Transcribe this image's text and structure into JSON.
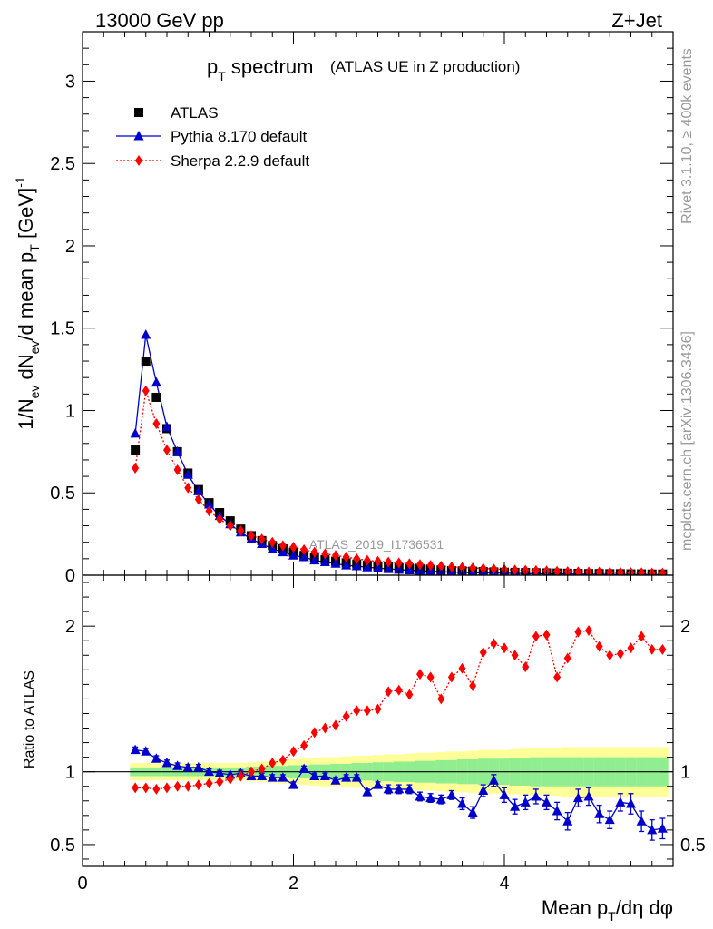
{
  "header": {
    "energy_label": "13000 GeV pp",
    "process_label": "Z+Jet",
    "title_main": "p",
    "title_sub": "T",
    "title_rest": " spectrum",
    "title_paren": "(ATLAS UE in Z production)",
    "watermark": "ATLAS_2019_I1736531",
    "rivet_label": "Rivet 3.1.10, ≥ 400k events",
    "mcplots_label": "mcplots.cern.ch [arXiv:1306.3436]"
  },
  "axes": {
    "ylabel_main": "1/N",
    "ylabel_sub1": "ev",
    "ylabel_mid": " dN",
    "ylabel_sub2": "ev",
    "ylabel_mid2": "/d mean p",
    "ylabel_sub3": "T",
    "ylabel_unit": " [GeV]",
    "ylabel_sup": "-1",
    "ratio_ylabel": "Ratio to ATLAS",
    "xlabel_main": "Mean p",
    "xlabel_sub": "T",
    "xlabel_rest": "/dη dφ"
  },
  "legend": [
    {
      "label": "ATLAS",
      "color": "#000000",
      "marker": "square"
    },
    {
      "label": "Pythia 8.170 default",
      "color": "#0000cc",
      "marker": "triangle"
    },
    {
      "label": "Sherpa 2.2.9 default",
      "color": "#ff0000",
      "marker": "diamond"
    }
  ],
  "chart_data": [
    {
      "type": "scatter",
      "panel": "main",
      "xlim": [
        0,
        5.6
      ],
      "ylim": [
        0,
        3.3
      ],
      "yticks": [
        0,
        0.5,
        1,
        1.5,
        2,
        2.5,
        3
      ],
      "ytick_labels": [
        "0",
        "0.5",
        "1",
        "1.5",
        "2",
        "2.5",
        "3"
      ],
      "x": [
        0.5,
        0.6,
        0.7,
        0.8,
        0.9,
        1.0,
        1.1,
        1.2,
        1.3,
        1.4,
        1.5,
        1.6,
        1.7,
        1.8,
        1.9,
        2.0,
        2.1,
        2.2,
        2.3,
        2.4,
        2.5,
        2.6,
        2.7,
        2.8,
        2.9,
        3.0,
        3.1,
        3.2,
        3.3,
        3.4,
        3.5,
        3.6,
        3.7,
        3.8,
        3.9,
        4.0,
        4.1,
        4.2,
        4.3,
        4.4,
        4.5,
        4.6,
        4.7,
        4.8,
        4.9,
        5.0,
        5.1,
        5.2,
        5.3,
        5.4,
        5.5
      ],
      "series": [
        {
          "name": "ATLAS",
          "color": "#000000",
          "values": [
            0.76,
            1.3,
            1.08,
            0.89,
            0.75,
            0.62,
            0.52,
            0.44,
            0.38,
            0.33,
            0.28,
            0.24,
            0.21,
            0.18,
            0.16,
            0.14,
            0.12,
            0.105,
            0.095,
            0.085,
            0.075,
            0.068,
            0.06,
            0.055,
            0.05,
            0.045,
            0.04,
            0.037,
            0.034,
            0.031,
            0.028,
            0.026,
            0.024,
            0.022,
            0.02,
            0.018,
            0.017,
            0.016,
            0.015,
            0.014,
            0.013,
            0.012,
            0.011,
            0.01,
            0.01,
            0.009,
            0.009,
            0.008,
            0.008,
            0.007,
            0.007
          ]
        },
        {
          "name": "Pythia 8.170 default",
          "color": "#0000cc",
          "values": [
            0.86,
            1.46,
            1.17,
            0.9,
            0.75,
            0.61,
            0.51,
            0.43,
            0.36,
            0.31,
            0.26,
            0.22,
            0.19,
            0.16,
            0.14,
            0.12,
            0.11,
            0.09,
            0.08,
            0.07,
            0.06,
            0.055,
            0.048,
            0.043,
            0.038,
            0.034,
            0.03,
            0.027,
            0.024,
            0.021,
            0.019,
            0.017,
            0.015,
            0.014,
            0.013,
            0.012,
            0.011,
            0.01,
            0.009,
            0.008,
            0.008,
            0.007,
            0.007,
            0.006,
            0.006,
            0.005,
            0.005,
            0.005,
            0.004,
            0.004,
            0.004
          ]
        },
        {
          "name": "Sherpa 2.2.9 default",
          "color": "#ff0000",
          "values": [
            0.65,
            1.12,
            0.92,
            0.76,
            0.64,
            0.53,
            0.46,
            0.39,
            0.34,
            0.3,
            0.27,
            0.24,
            0.22,
            0.2,
            0.18,
            0.17,
            0.155,
            0.14,
            0.13,
            0.12,
            0.11,
            0.1,
            0.09,
            0.085,
            0.08,
            0.075,
            0.07,
            0.065,
            0.06,
            0.055,
            0.05,
            0.047,
            0.044,
            0.041,
            0.038,
            0.035,
            0.032,
            0.03,
            0.028,
            0.026,
            0.024,
            0.022,
            0.021,
            0.02,
            0.019,
            0.018,
            0.017,
            0.016,
            0.015,
            0.014,
            0.013
          ]
        }
      ]
    },
    {
      "type": "scatter",
      "panel": "ratio",
      "xlim": [
        0,
        5.6
      ],
      "ylim": [
        0.35,
        2.35
      ],
      "yticks": [
        0.5,
        1,
        2
      ],
      "ytick_labels": [
        "0.5",
        "1",
        "2"
      ],
      "xticks": [
        0,
        2,
        4
      ],
      "xtick_labels": [
        "0",
        "2",
        "4"
      ],
      "x": [
        0.5,
        0.6,
        0.7,
        0.8,
        0.9,
        1.0,
        1.1,
        1.2,
        1.3,
        1.4,
        1.5,
        1.6,
        1.7,
        1.8,
        1.9,
        2.0,
        2.1,
        2.2,
        2.3,
        2.4,
        2.5,
        2.6,
        2.7,
        2.8,
        2.9,
        3.0,
        3.1,
        3.2,
        3.3,
        3.4,
        3.5,
        3.6,
        3.7,
        3.8,
        3.9,
        4.0,
        4.1,
        4.2,
        4.3,
        4.4,
        4.5,
        4.6,
        4.7,
        4.8,
        4.9,
        5.0,
        5.1,
        5.2,
        5.3,
        5.4,
        5.5
      ],
      "band_inner": [
        0.03,
        0.03,
        0.03,
        0.03,
        0.03,
        0.03,
        0.03,
        0.03,
        0.03,
        0.03,
        0.03,
        0.035,
        0.035,
        0.04,
        0.04,
        0.045,
        0.045,
        0.05,
        0.05,
        0.055,
        0.055,
        0.06,
        0.06,
        0.065,
        0.065,
        0.07,
        0.07,
        0.075,
        0.075,
        0.08,
        0.08,
        0.085,
        0.085,
        0.09,
        0.09,
        0.09,
        0.095,
        0.095,
        0.1,
        0.1,
        0.1,
        0.1,
        0.1,
        0.1,
        0.1,
        0.1,
        0.1,
        0.1,
        0.1,
        0.1,
        0.1
      ],
      "band_outer": [
        0.06,
        0.06,
        0.06,
        0.06,
        0.06,
        0.06,
        0.06,
        0.06,
        0.06,
        0.06,
        0.06,
        0.065,
        0.07,
        0.075,
        0.08,
        0.085,
        0.09,
        0.095,
        0.1,
        0.1,
        0.105,
        0.11,
        0.11,
        0.115,
        0.12,
        0.12,
        0.125,
        0.13,
        0.13,
        0.135,
        0.14,
        0.14,
        0.145,
        0.15,
        0.15,
        0.15,
        0.155,
        0.16,
        0.16,
        0.165,
        0.165,
        0.17,
        0.17,
        0.17,
        0.17,
        0.17,
        0.17,
        0.17,
        0.17,
        0.17,
        0.17
      ],
      "series": [
        {
          "name": "Pythia 8.170 default",
          "color": "#0000cc",
          "values": [
            1.15,
            1.14,
            1.09,
            1.06,
            1.04,
            1.03,
            1.03,
            1.0,
            0.99,
            0.98,
            0.99,
            0.97,
            0.97,
            0.96,
            0.96,
            0.91,
            1.02,
            0.97,
            0.97,
            0.94,
            0.96,
            0.96,
            0.86,
            0.91,
            0.88,
            0.88,
            0.88,
            0.83,
            0.82,
            0.81,
            0.84,
            0.78,
            0.72,
            0.87,
            0.94,
            0.84,
            0.76,
            0.79,
            0.83,
            0.79,
            0.73,
            0.66,
            0.82,
            0.83,
            0.71,
            0.67,
            0.79,
            0.78,
            0.66,
            0.6,
            0.61
          ],
          "errors": [
            0.02,
            0.02,
            0.02,
            0.02,
            0.02,
            0.02,
            0.02,
            0.02,
            0.02,
            0.02,
            0.02,
            0.02,
            0.02,
            0.02,
            0.02,
            0.02,
            0.02,
            0.02,
            0.02,
            0.02,
            0.02,
            0.02,
            0.02,
            0.02,
            0.03,
            0.03,
            0.03,
            0.03,
            0.03,
            0.03,
            0.03,
            0.04,
            0.04,
            0.04,
            0.04,
            0.05,
            0.05,
            0.05,
            0.05,
            0.05,
            0.06,
            0.06,
            0.06,
            0.06,
            0.06,
            0.06,
            0.06,
            0.07,
            0.07,
            0.07,
            0.07
          ]
        },
        {
          "name": "Sherpa 2.2.9 default",
          "color": "#ff0000",
          "values": [
            0.89,
            0.89,
            0.88,
            0.89,
            0.9,
            0.9,
            0.91,
            0.92,
            0.93,
            0.95,
            0.97,
            1.0,
            1.02,
            1.06,
            1.08,
            1.14,
            1.18,
            1.27,
            1.3,
            1.32,
            1.38,
            1.42,
            1.42,
            1.43,
            1.55,
            1.56,
            1.53,
            1.67,
            1.65,
            1.5,
            1.65,
            1.71,
            1.59,
            1.82,
            1.88,
            1.85,
            1.8,
            1.72,
            1.93,
            1.94,
            1.65,
            1.78,
            1.96,
            1.97,
            1.86,
            1.8,
            1.81,
            1.85,
            1.93,
            1.84,
            1.84
          ],
          "errors": [
            0.01,
            0.01,
            0.01,
            0.01,
            0.01,
            0.01,
            0.01,
            0.01,
            0.01,
            0.01,
            0.01,
            0.01,
            0.01,
            0.01,
            0.01,
            0.01,
            0.01,
            0.01,
            0.01,
            0.01,
            0.01,
            0.01,
            0.01,
            0.01,
            0.01,
            0.01,
            0.01,
            0.01,
            0.01,
            0.01,
            0.01,
            0.01,
            0.01,
            0.01,
            0.01,
            0.01,
            0.01,
            0.01,
            0.01,
            0.01,
            0.01,
            0.01,
            0.01,
            0.01,
            0.01,
            0.01,
            0.01,
            0.01,
            0.01,
            0.01,
            0.01
          ]
        }
      ]
    }
  ],
  "colors": {
    "band_inner": "#90ee90",
    "band_outer": "#ffff99",
    "axis": "#000000",
    "watermark": "#999999"
  }
}
